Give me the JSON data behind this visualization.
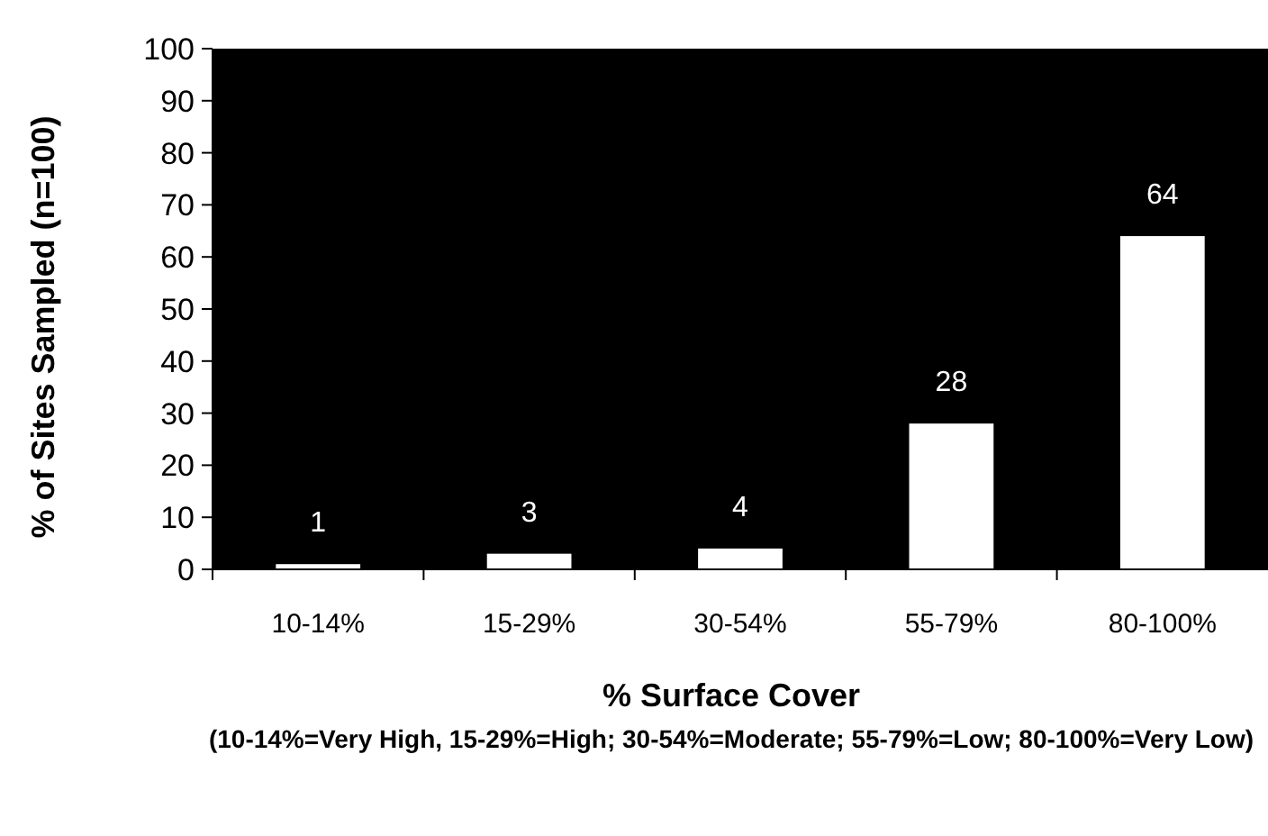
{
  "chart_data": {
    "type": "bar",
    "xlabel": "% Surface Cover",
    "ylabel": "% of Sites Sampled (n=100)",
    "categories": [
      "10-14%",
      "15-29%",
      "30-54%",
      "55-79%",
      "80-100%"
    ],
    "values": [
      1,
      3,
      4,
      28,
      64
    ],
    "color": "#ffffff",
    "ylim": [
      0,
      100
    ],
    "yticks": [
      0,
      10,
      20,
      30,
      40,
      50,
      60,
      70,
      80,
      90,
      100
    ],
    "grid": false,
    "data_labels": true,
    "annotations": [
      "(10-14%=Very High, 15-29%=High; 30-54%=Moderate; 55-79%=Low; 80-100%=Very Low)"
    ]
  }
}
